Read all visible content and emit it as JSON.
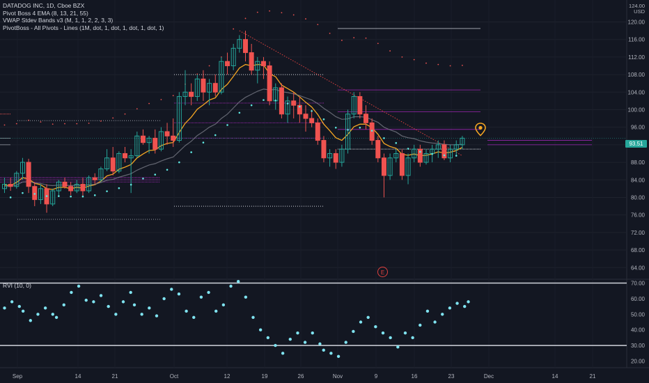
{
  "legend": {
    "symbol": "DATADOG INC, 1D, Cboe BZX",
    "line1": "Pivot Boss 4 EMA (8, 13, 21, 55)",
    "line2": "VWAP Stdev Bands v3 (M, 1, 1, 2, 2, 3, 3)",
    "line3": "PivotBoss - All Pivots - Lines (1M, dot, 1, dot, 1, dot, 1, dot, 1)"
  },
  "currency": "USD",
  "currency_top": "124.00",
  "last_price_label": "93.51",
  "earnings_marker": "E",
  "indicator_title": "RVI (10, 0)",
  "colors": {
    "up": "#26a69a",
    "down": "#ef5350",
    "ema_fast": "#f5a623",
    "ema_slow": "#787b86",
    "vwap_dots": "#5fe6e0",
    "pivot_purple": "#9c27b0",
    "resistance_line": "#e0413f",
    "rvi_dots": "#7fe3f0"
  },
  "chart_data": [
    {
      "type": "candlestick",
      "title": "DATADOG INC, 1D, Cboe BZX",
      "x_tick_labels": [
        "Sep",
        "14",
        "21",
        "Oct",
        "12",
        "19",
        "26",
        "Nov",
        "9",
        "16",
        "23",
        "Dec",
        "14",
        "21"
      ],
      "y_ticks": [
        64,
        68,
        72,
        76,
        80,
        84,
        88,
        92,
        96,
        100,
        104,
        108,
        112,
        116,
        120
      ],
      "y_tick_labels": [
        "64.00",
        "68.00",
        "72.00",
        "76.00",
        "80.00",
        "84.00",
        "88.00",
        "92.00",
        "96.00",
        "100.00",
        "104.00",
        "108.00",
        "112.00",
        "116.00",
        "120.00"
      ],
      "ylim": [
        61.5,
        125
      ],
      "last_price": 93.51,
      "ohlc": [
        [
          82,
          84.5,
          81,
          83
        ],
        [
          83,
          84.5,
          81.5,
          82.5
        ],
        [
          82.5,
          86,
          82,
          85.5
        ],
        [
          85.5,
          89,
          84,
          88
        ],
        [
          88,
          88.8,
          81,
          82.5
        ],
        [
          82.5,
          83.5,
          78,
          79.5
        ],
        [
          79.5,
          83,
          78.5,
          82
        ],
        [
          82,
          83,
          76.5,
          78.5
        ],
        [
          78.5,
          82,
          78,
          81.5
        ],
        [
          81.5,
          84,
          80.5,
          83.5
        ],
        [
          83.5,
          84.5,
          82,
          82.5
        ],
        [
          82.5,
          83.5,
          80.5,
          81.5
        ],
        [
          81.5,
          84,
          81,
          83
        ],
        [
          83,
          84.5,
          80,
          81.5
        ],
        [
          81.5,
          85,
          81,
          84.5
        ],
        [
          84.5,
          85.5,
          83,
          84
        ],
        [
          84,
          87,
          83.5,
          86.5
        ],
        [
          86.5,
          91,
          86,
          89
        ],
        [
          89,
          91.5,
          85,
          86
        ],
        [
          86,
          90.5,
          85.5,
          90
        ],
        [
          90,
          91.5,
          88,
          89
        ],
        [
          89,
          91,
          81,
          89.5
        ],
        [
          89.5,
          95,
          89,
          94
        ],
        [
          94,
          95.5,
          92,
          92.5
        ],
        [
          92.5,
          94,
          90,
          93.5
        ],
        [
          93.5,
          95.5,
          90,
          91
        ],
        [
          91,
          96,
          90.5,
          95
        ],
        [
          95,
          97,
          92,
          94
        ],
        [
          94,
          98,
          91.5,
          93
        ],
        [
          93,
          104,
          92.5,
          103
        ],
        [
          103,
          109,
          101,
          104
        ],
        [
          104,
          106,
          101,
          103
        ],
        [
          103,
          108,
          102,
          107
        ],
        [
          107,
          109,
          102,
          104
        ],
        [
          104,
          107,
          101,
          106
        ],
        [
          106,
          108,
          103,
          104
        ],
        [
          104,
          112,
          103.5,
          111
        ],
        [
          111,
          113,
          108,
          110
        ],
        [
          110,
          115,
          109,
          114
        ],
        [
          114,
          117,
          113,
          116
        ],
        [
          116,
          118,
          111,
          113
        ],
        [
          113,
          115,
          108,
          109
        ],
        [
          109,
          112,
          106,
          111
        ],
        [
          111,
          112,
          107,
          110
        ],
        [
          110,
          111,
          101,
          102
        ],
        [
          102,
          106,
          100,
          105
        ],
        [
          105,
          106,
          98,
          99
        ],
        [
          99,
          103,
          97,
          102
        ],
        [
          102,
          104,
          98,
          101
        ],
        [
          101,
          103,
          97,
          99
        ],
        [
          99,
          101,
          95,
          98
        ],
        [
          98,
          100,
          96,
          97
        ],
        [
          97,
          98,
          92,
          93
        ],
        [
          93,
          94,
          88,
          89
        ],
        [
          89,
          91,
          87,
          90
        ],
        [
          90,
          91,
          86.5,
          88
        ],
        [
          88,
          92,
          87,
          91
        ],
        [
          91,
          100,
          90,
          99
        ],
        [
          99,
          104,
          98,
          103
        ],
        [
          103,
          104,
          98,
          99
        ],
        [
          99,
          101,
          95.5,
          97
        ],
        [
          97,
          98,
          92,
          93
        ],
        [
          93,
          94,
          88,
          89
        ],
        [
          89,
          90,
          80,
          85
        ],
        [
          85,
          90,
          84,
          89
        ],
        [
          89,
          91,
          88,
          90
        ],
        [
          90,
          91,
          84,
          85
        ],
        [
          85,
          90,
          83,
          89
        ],
        [
          89,
          92,
          88,
          91
        ],
        [
          91,
          92,
          87,
          88
        ],
        [
          88,
          91,
          87.5,
          90
        ],
        [
          90,
          92,
          88,
          91
        ],
        [
          91,
          93,
          89,
          92
        ],
        [
          92,
          93,
          88.5,
          89
        ],
        [
          89,
          92,
          88,
          91
        ],
        [
          91,
          93,
          89.5,
          92
        ],
        [
          92,
          94,
          91,
          93.5
        ]
      ],
      "series": [
        {
          "name": "EMA 8",
          "values": [
            82.8,
            82.7,
            83.4,
            84.5,
            84.2,
            83.2,
            82.9,
            82.0,
            81.8,
            82.3,
            82.3,
            82.0,
            82.3,
            82.1,
            82.6,
            82.9,
            83.7,
            84.9,
            85.3,
            86.4,
            86.9,
            87.5,
            89.0,
            89.9,
            90.7,
            90.8,
            91.8,
            92.3,
            92.5,
            94.8,
            96.9,
            98.3,
            100.1,
            101.1,
            102.2,
            102.7,
            104.6,
            105.8,
            107.6,
            109.5,
            110.3,
            110.0,
            110.3,
            110.2,
            108.2,
            107.5,
            105.6,
            104.8,
            104.0,
            102.9,
            101.7,
            100.6,
            98.9,
            96.7,
            95.2,
            93.6,
            93.0,
            94.4,
            96.1,
            96.7,
            96.7,
            95.9,
            94.4,
            92.3,
            91.6,
            91.2,
            89.8,
            89.6,
            89.9,
            89.5,
            89.6,
            89.9,
            90.4,
            90.1,
            90.3,
            90.7,
            91.4
          ]
        },
        {
          "name": "EMA 21",
          "values": [
            82.5,
            82.5,
            82.8,
            83.5,
            83.6,
            83.3,
            83.2,
            82.8,
            82.7,
            82.8,
            82.8,
            82.7,
            82.8,
            82.7,
            82.9,
            83.0,
            83.4,
            83.9,
            84.1,
            84.6,
            85.0,
            85.4,
            86.2,
            86.8,
            87.4,
            87.7,
            88.3,
            88.8,
            89.2,
            90.5,
            91.8,
            92.8,
            94.1,
            95.0,
            96.0,
            96.7,
            98.0,
            99.0,
            100.4,
            101.8,
            102.8,
            103.5,
            104.2,
            104.7,
            104.5,
            104.6,
            104.1,
            103.9,
            103.6,
            103.2,
            102.7,
            102.2,
            101.4,
            100.3,
            99.4,
            98.4,
            97.8,
            97.9,
            98.4,
            98.4,
            98.3,
            97.7,
            97.1,
            96.0,
            95.4,
            94.9,
            94.0,
            93.6,
            93.4,
            92.9,
            92.6,
            92.4,
            92.3,
            92.1,
            92.0,
            92.0,
            92.1
          ]
        }
      ]
    },
    {
      "type": "scatter",
      "title": "RVI (10, 0)",
      "y_ticks": [
        20,
        30,
        40,
        50,
        60,
        70
      ],
      "y_tick_labels": [
        "20.00",
        "30.00",
        "40.00",
        "50.00",
        "60.00",
        "70.00"
      ],
      "ylim": [
        18,
        72
      ],
      "levels": [
        70,
        30
      ],
      "values": [
        [
          0,
          54
        ],
        [
          2,
          58
        ],
        [
          4,
          55
        ],
        [
          5,
          52
        ],
        [
          7,
          46
        ],
        [
          9,
          50
        ],
        [
          11,
          54
        ],
        [
          13,
          50
        ],
        [
          14,
          48
        ],
        [
          16,
          56
        ],
        [
          18,
          64
        ],
        [
          20,
          68
        ],
        [
          22,
          59
        ],
        [
          24,
          58
        ],
        [
          26,
          62
        ],
        [
          28,
          55
        ],
        [
          30,
          50
        ],
        [
          32,
          58
        ],
        [
          34,
          64
        ],
        [
          35,
          56
        ],
        [
          37,
          50
        ],
        [
          39,
          54
        ],
        [
          41,
          49
        ],
        [
          43,
          60
        ],
        [
          45,
          66
        ],
        [
          47,
          63
        ],
        [
          49,
          52
        ],
        [
          51,
          48
        ],
        [
          53,
          61
        ],
        [
          55,
          64
        ],
        [
          57,
          52
        ],
        [
          59,
          56
        ],
        [
          61,
          68
        ],
        [
          63,
          71
        ],
        [
          65,
          61
        ],
        [
          67,
          48
        ],
        [
          69,
          40
        ],
        [
          71,
          35
        ],
        [
          73,
          30
        ],
        [
          75,
          25
        ],
        [
          77,
          34
        ],
        [
          79,
          38
        ],
        [
          81,
          32
        ],
        [
          83,
          38
        ],
        [
          85,
          31
        ],
        [
          86,
          27
        ],
        [
          88,
          25
        ],
        [
          90,
          23
        ],
        [
          92,
          32
        ],
        [
          94,
          39
        ],
        [
          96,
          45
        ],
        [
          98,
          48
        ],
        [
          100,
          42
        ],
        [
          102,
          38
        ],
        [
          104,
          35
        ],
        [
          106,
          29
        ],
        [
          108,
          38
        ],
        [
          110,
          35
        ],
        [
          112,
          43
        ],
        [
          114,
          52
        ],
        [
          116,
          45
        ],
        [
          118,
          50
        ],
        [
          120,
          54
        ],
        [
          122,
          57
        ],
        [
          124,
          55
        ],
        [
          125,
          58
        ]
      ]
    }
  ]
}
